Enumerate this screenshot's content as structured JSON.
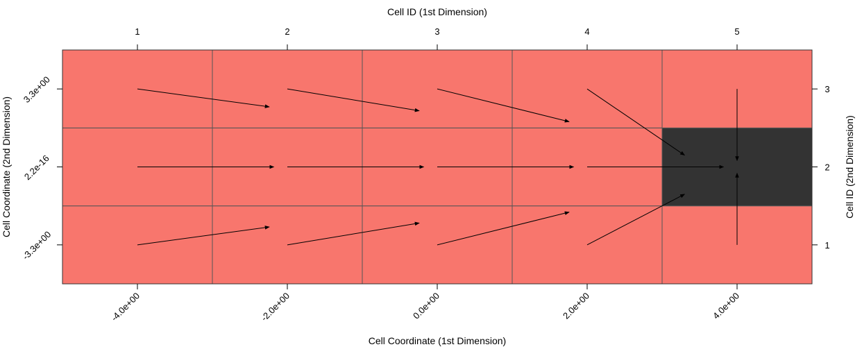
{
  "chart_data": {
    "type": "heatmap",
    "title": "",
    "xlabel": "Cell Coordinate (1st Dimension)",
    "ylabel": "Cell Coordinate (2nd Dimension)",
    "x2label": "Cell ID (1st Dimension)",
    "y2label": "Cell ID (2nd Dimension)",
    "x_tick_labels": [
      "-4.0e+00",
      "-2.0e+00",
      "0.0e+00",
      "2.0e+00",
      "4.0e+00"
    ],
    "y_tick_labels": [
      "-3.3e+00",
      "2.2e-16",
      "3.3e+00"
    ],
    "x2_tick_labels": [
      "1",
      "2",
      "3",
      "4",
      "5"
    ],
    "y2_tick_labels": [
      "1",
      "2",
      "3"
    ],
    "cell_ids_x": [
      1,
      2,
      3,
      4,
      5
    ],
    "cell_ids_y": [
      1,
      2,
      3
    ],
    "cells": [
      {
        "ix": 1,
        "iy": 1,
        "state": "normal"
      },
      {
        "ix": 2,
        "iy": 1,
        "state": "normal"
      },
      {
        "ix": 3,
        "iy": 1,
        "state": "normal"
      },
      {
        "ix": 4,
        "iy": 1,
        "state": "normal"
      },
      {
        "ix": 5,
        "iy": 1,
        "state": "normal"
      },
      {
        "ix": 1,
        "iy": 2,
        "state": "normal"
      },
      {
        "ix": 2,
        "iy": 2,
        "state": "normal"
      },
      {
        "ix": 3,
        "iy": 2,
        "state": "normal"
      },
      {
        "ix": 4,
        "iy": 2,
        "state": "normal"
      },
      {
        "ix": 5,
        "iy": 2,
        "state": "sink"
      },
      {
        "ix": 1,
        "iy": 3,
        "state": "normal"
      },
      {
        "ix": 2,
        "iy": 3,
        "state": "normal"
      },
      {
        "ix": 3,
        "iy": 3,
        "state": "normal"
      },
      {
        "ix": 4,
        "iy": 3,
        "state": "normal"
      },
      {
        "ix": 5,
        "iy": 3,
        "state": "normal"
      }
    ],
    "arrows": [
      {
        "from": [
          1,
          3
        ],
        "to": [
          1.88,
          2.77
        ]
      },
      {
        "from": [
          2,
          3
        ],
        "to": [
          2.88,
          2.72
        ]
      },
      {
        "from": [
          3,
          3
        ],
        "to": [
          3.88,
          2.58
        ]
      },
      {
        "from": [
          4,
          3
        ],
        "to": [
          4.65,
          2.15
        ]
      },
      {
        "from": [
          5,
          3
        ],
        "to": [
          5,
          2.08
        ]
      },
      {
        "from": [
          1,
          2
        ],
        "to": [
          1.91,
          2
        ]
      },
      {
        "from": [
          2,
          2
        ],
        "to": [
          2.91,
          2
        ]
      },
      {
        "from": [
          3,
          2
        ],
        "to": [
          3.91,
          2
        ]
      },
      {
        "from": [
          4,
          2
        ],
        "to": [
          4.91,
          2
        ]
      },
      {
        "from": [
          1,
          1
        ],
        "to": [
          1.88,
          1.23
        ]
      },
      {
        "from": [
          2,
          1
        ],
        "to": [
          2.88,
          1.28
        ]
      },
      {
        "from": [
          3,
          1
        ],
        "to": [
          3.88,
          1.42
        ]
      },
      {
        "from": [
          4,
          1
        ],
        "to": [
          4.65,
          1.65
        ]
      },
      {
        "from": [
          5,
          1
        ],
        "to": [
          5,
          1.92
        ]
      }
    ],
    "colors": {
      "normal": "#f8766d",
      "sink": "#333333",
      "grid": "#555555",
      "arrow": "#000000"
    }
  }
}
